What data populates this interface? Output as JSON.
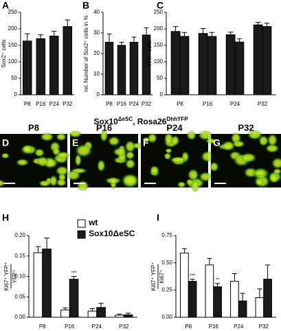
{
  "chart_data": [
    {
      "type": "bar",
      "panel": "A",
      "y_label": "Sox2⁺ cells",
      "categories": [
        "P8",
        "P16",
        "P24",
        "P32"
      ],
      "series": [
        {
          "color": "#1a1a1a",
          "values": [
            163,
            170,
            178,
            207
          ],
          "errors": [
            22,
            12,
            15,
            20
          ]
        }
      ],
      "ylim": [
        0,
        250
      ],
      "yticks": [
        0,
        50,
        100,
        150,
        200,
        250
      ]
    },
    {
      "type": "bar",
      "panel": "B",
      "y_label": "rel. Number of Sox2⁺ cells in %",
      "categories": [
        "P8",
        "P16",
        "P24",
        "P32"
      ],
      "series": [
        {
          "color": "#1a1a1a",
          "values": [
            25.5,
            24,
            25.5,
            29
          ],
          "errors": [
            4,
            1.5,
            2.5,
            3.5
          ]
        }
      ],
      "ylim": [
        0,
        40
      ],
      "yticks": [
        0,
        10,
        20,
        30,
        40
      ]
    },
    {
      "type": "bar",
      "panel": "C",
      "y_label": "YFP⁺ cells",
      "categories": [
        "P8",
        "P16",
        "P24",
        "P32"
      ],
      "series": [
        {
          "color": "#1a1a1a",
          "values": [
            192,
            186,
            182,
            212
          ],
          "errors": [
            15,
            15,
            8,
            8
          ]
        },
        {
          "color": "#1a1a1a",
          "values": [
            177,
            177,
            160,
            207
          ],
          "errors": [
            12,
            12,
            10,
            10
          ]
        }
      ],
      "ylim": [
        0,
        250
      ],
      "yticks": [
        0,
        50,
        100,
        150,
        200,
        250
      ]
    },
    {
      "type": "bar",
      "panel": "H",
      "y_label_numerator": "Ki67⁺ YFP⁺",
      "y_label_denominator": "YFP⁺",
      "categories": [
        "P8",
        "P16",
        "P24",
        "P32"
      ],
      "series": [
        {
          "name": "wt",
          "color": "#ffffff",
          "values": [
            0.158,
            0.018,
            0.015,
            0.005
          ],
          "errors": [
            0.015,
            0.005,
            0.006,
            0.003
          ]
        },
        {
          "name": "Sox10ΔeSC",
          "color": "#1a1a1a",
          "values": [
            0.167,
            0.093,
            0.024,
            0.006
          ],
          "errors": [
            0.027,
            0.007,
            0.01,
            0.004
          ],
          "significance": [
            null,
            "***",
            null,
            null
          ]
        }
      ],
      "ylim": [
        0,
        0.2
      ],
      "yticks": [
        {
          "value": 0,
          "label": "0.00"
        },
        {
          "value": 0.05,
          "label": "0.05"
        },
        {
          "value": 0.1,
          "label": "0.10"
        },
        {
          "value": 0.15,
          "label": "0.15"
        },
        {
          "value": 0.2,
          "label": "0.20"
        }
      ]
    },
    {
      "type": "bar",
      "panel": "I",
      "y_label_numerator": "Ki67⁺ YFP⁺",
      "y_label_denominator": "Ki67⁺",
      "categories": [
        "P8",
        "P16",
        "P24",
        "P32"
      ],
      "series": [
        {
          "color": "#ffffff",
          "values": [
            0.59,
            0.48,
            0.33,
            0.18
          ],
          "errors": [
            0.04,
            0.06,
            0.07,
            0.08
          ]
        },
        {
          "color": "#1a1a1a",
          "values": [
            0.33,
            0.28,
            0.15,
            0.35
          ],
          "errors": [
            0.02,
            0.03,
            0.07,
            0.13
          ],
          "significance": [
            "***",
            "**",
            null,
            null
          ]
        }
      ],
      "ylim": [
        0,
        0.75
      ],
      "yticks": [
        {
          "value": 0,
          "label": "0.00"
        },
        {
          "value": 0.25,
          "label": "0.25"
        },
        {
          "value": 0.5,
          "label": "0.50"
        },
        {
          "value": 0.75,
          "label": "0.75"
        }
      ]
    }
  ],
  "images": {
    "title_parts": [
      "Sox10",
      "ΔeSC",
      ", Rosa26",
      "DhhYFP"
    ],
    "panels": [
      {
        "panel": "D",
        "label": "P8"
      },
      {
        "panel": "E",
        "label": "P16"
      },
      {
        "panel": "F",
        "label": "P24"
      },
      {
        "panel": "G",
        "label": "P32"
      }
    ]
  }
}
